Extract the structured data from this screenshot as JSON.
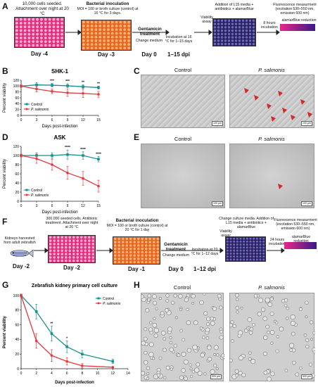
{
  "panels": {
    "A": {
      "label": "A",
      "step1_text": "10,000 cells seeded. Attachment over night at 20 °C",
      "step1_day": "Day -4",
      "step2_title": "Bacterial inoculation",
      "step2_text": "MOI = 100 or broth culture (control) at 16 °C for 3 days.",
      "step2_day": "Day -3",
      "step3_title": "Gentamicin treatment",
      "step3_text": "Change medium",
      "step3_day": "Day 0",
      "step4_text": "Incubation at 16 °C for 1–15 days",
      "step4_day": "1–15 dpi",
      "viability": "Viability assay",
      "addition": "Addition of L15 media + antibiotics + alamarBlue",
      "incubation": "8 hours incubation",
      "fluor_title": "Fluorescence measurment",
      "fluor_text": "(excitation 530–550 nm, emission 600 nm)",
      "reduction": "alamarBlue reduction"
    },
    "B": {
      "label": "B"
    },
    "C": {
      "label": "C",
      "control": "Control",
      "salmonis": "P. salmonis",
      "scale": "100 µm"
    },
    "D": {
      "label": "D"
    },
    "E": {
      "label": "E",
      "control": "Control",
      "salmonis": "P. salmonis",
      "scale": "100 µm"
    },
    "F": {
      "label": "F",
      "step0_text": "Kidneys harvested from adult zebrafish",
      "step0_day": "Day -2",
      "step1_text": "300,000 seeded cells. Antibiotic treatment. Attachment over night at 20 °C",
      "step1_day": "Day -2",
      "step2_title": "Bacterial inoculation",
      "step2_text": "MOI = 100 or broth culture (control) at 20 °C for 1 day",
      "step2_day": "Day -1",
      "step3_title": "Gentamicin treatment",
      "step3_text": "Change medium",
      "step3_day": "Day 0",
      "step4_text": "Incubation at 20 °C for 1–12 days",
      "step4_day": "1–12 dpi",
      "viability": "Viability assay",
      "addition": "Change culture media. Addition of L15 media + antibiotics + alamarBlue",
      "incubation": "24 hours incubation",
      "fluor_title": "Fluorescence measurment",
      "fluor_text": "(excitation 530–550 nm, emission 600 nm)",
      "reduction": "alamarBlue reduction"
    },
    "G": {
      "label": "G"
    },
    "H": {
      "label": "H",
      "control": "Control",
      "salmonis": "P. salmonis",
      "scale": "500 µm"
    }
  },
  "colors": {
    "control": "#1a8f8f",
    "salmonis": "#e8383d",
    "pink": "#e52d7f",
    "orange": "#e9661e",
    "navy": "#27215f"
  },
  "chart_data": [
    {
      "id": "B",
      "type": "line",
      "title": "SHK-1",
      "xlabel": "Days post-infection",
      "ylabel": "Percent viability",
      "x": [
        0,
        3,
        6,
        9,
        12,
        15
      ],
      "xticks": [
        0,
        3,
        6,
        9,
        12,
        15
      ],
      "yticks": [
        0,
        20,
        40,
        60,
        80,
        100,
        120
      ],
      "xlim": [
        0,
        15
      ],
      "ylim": [
        0,
        120
      ],
      "series": [
        {
          "name": "Control",
          "values": [
            100,
            104,
            103,
            101,
            98,
            95
          ],
          "err": [
            4,
            8,
            6,
            7,
            6,
            5
          ]
        },
        {
          "name": "P. salmonis",
          "values": [
            100,
            90,
            82,
            77,
            75,
            72
          ],
          "err": [
            4,
            10,
            8,
            12,
            14,
            10
          ]
        }
      ],
      "annotations": [
        {
          "x": 6,
          "text": "***"
        },
        {
          "x": 9,
          "text": "***"
        },
        {
          "x": 12,
          "text": "**"
        },
        {
          "x": 15,
          "text": "**"
        }
      ],
      "legend": "bottom-left"
    },
    {
      "id": "D",
      "type": "line",
      "title": "ASK",
      "xlabel": "Days post-infection",
      "ylabel": "Percent viability",
      "x": [
        0,
        3,
        6,
        9,
        12,
        15
      ],
      "xticks": [
        0,
        3,
        6,
        9,
        12,
        15
      ],
      "yticks": [
        0,
        20,
        40,
        60,
        80,
        100,
        120
      ],
      "xlim": [
        0,
        15
      ],
      "ylim": [
        0,
        120
      ],
      "series": [
        {
          "name": "Control",
          "values": [
            100,
            100,
            100,
            102,
            100,
            92
          ],
          "err": [
            3,
            6,
            6,
            10,
            8,
            6
          ]
        },
        {
          "name": "P. salmonis",
          "values": [
            100,
            93,
            80,
            62,
            50,
            33
          ],
          "err": [
            3,
            10,
            12,
            14,
            15,
            13
          ]
        }
      ],
      "annotations": [
        {
          "x": 9,
          "text": "****"
        },
        {
          "x": 12,
          "text": "****"
        },
        {
          "x": 15,
          "text": "****"
        }
      ],
      "legend": "bottom-left"
    },
    {
      "id": "G",
      "type": "line",
      "title": "Zebrafish kidney primary cell culture",
      "xlabel": "Days post-infection",
      "ylabel": "Percent viability",
      "x": [
        0,
        2,
        4,
        6,
        8,
        12
      ],
      "xticks": [
        0,
        2,
        4,
        6,
        8,
        10,
        12,
        14
      ],
      "yticks": [
        0,
        20,
        40,
        60,
        80,
        100
      ],
      "xlim": [
        0,
        14
      ],
      "ylim": [
        0,
        100
      ],
      "series": [
        {
          "name": "Control",
          "values": [
            100,
            78,
            48,
            30,
            20,
            10
          ],
          "err": [
            2,
            10,
            10,
            8,
            5,
            3
          ]
        },
        {
          "name": "P. salmonis",
          "values": [
            100,
            38,
            18,
            10,
            4,
            2
          ],
          "err": [
            2,
            10,
            8,
            5,
            3,
            1
          ]
        }
      ],
      "annotations": [
        {
          "x": 4,
          "text": "**"
        },
        {
          "x": 6,
          "text": "*"
        }
      ],
      "legend": "top-right"
    }
  ]
}
